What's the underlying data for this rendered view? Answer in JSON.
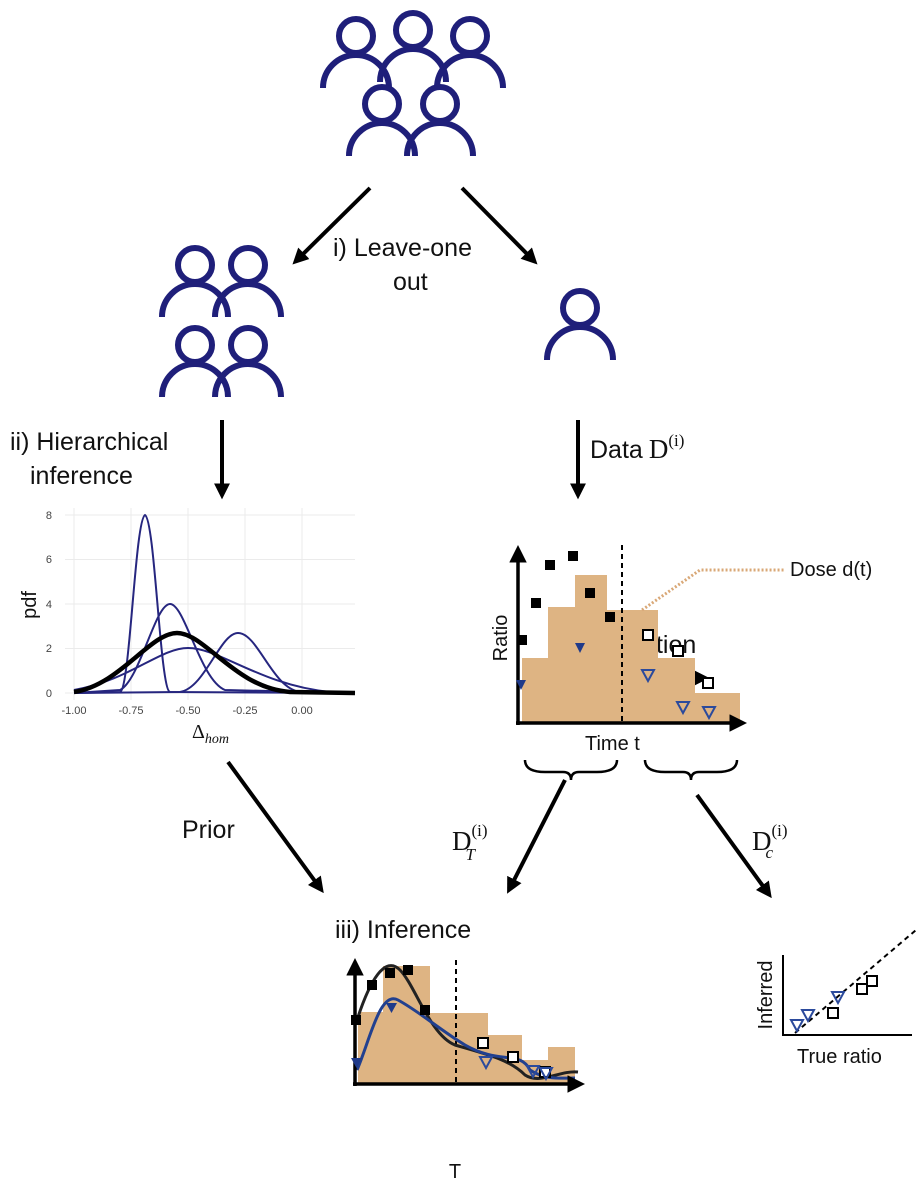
{
  "labels": {
    "leave_one_out": [
      "i) Leave-one",
      "out"
    ],
    "hierarchical": [
      "ii) Hierarchical",
      "inference"
    ],
    "data": {
      "text": "Data",
      "symbol": "D",
      "superscript": "(i)"
    },
    "prior": "Prior",
    "d_train": {
      "symbol": "D",
      "subscript": "T",
      "superscript": "(i)"
    },
    "d_test": {
      "symbol": "D",
      "subscript": "c",
      "superscript": "(i)"
    },
    "inference": "iii) Inference",
    "validation": "iv) Validation"
  },
  "pdf_plot": {
    "y_label": "pdf",
    "x_label": {
      "symbol": "Δ",
      "subscript": "hom"
    },
    "yticks": [
      "8",
      "6",
      "4",
      "2",
      "0"
    ],
    "xticks": [
      "-1.00",
      "-0.75",
      "-0.50",
      "-0.25",
      "0.00"
    ]
  },
  "data_plot": {
    "y_label": "Ratio",
    "x_label": "Time t",
    "dose_label": "Dose d(t)"
  },
  "inference_plot": {
    "x_label": "T"
  },
  "validation_plot": {
    "y_label": "Inferred",
    "x_label": "True ratio"
  }
}
